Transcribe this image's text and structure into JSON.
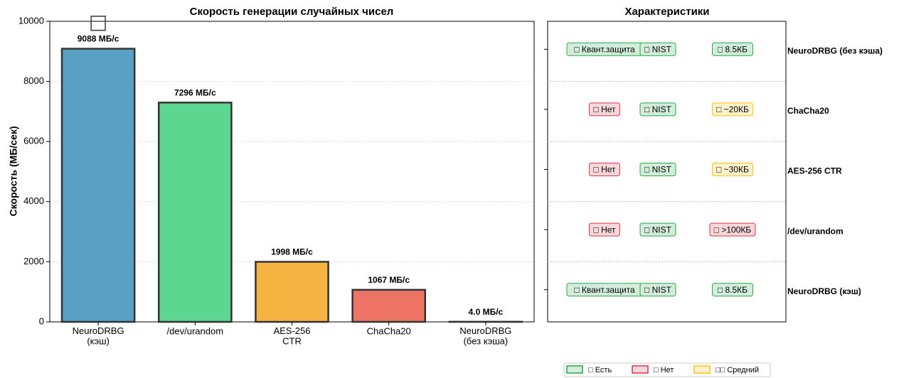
{
  "chart_data": [
    {
      "type": "bar",
      "title": "Скорость генерации случайных чисел",
      "ylabel": "Скорость (МБ/сек)",
      "categories": [
        "NeuroDRBG\n(кэш)",
        "/dev/urandom",
        "AES-256\nCTR",
        "ChaCha20",
        "NeuroDRBG\n(без кэша)"
      ],
      "values": [
        9088,
        7296,
        1998,
        1067,
        4.0
      ],
      "value_labels": [
        "9088 МБ/с",
        "7296 МБ/с",
        "1998 МБ/с",
        "1067 МБ/с",
        "4.0 МБ/с"
      ],
      "colors": [
        "#5aa0c4",
        "#5dd68f",
        "#f5b342",
        "#ee7565",
        "#8a8a8a"
      ],
      "annotation": "□",
      "ylim": [
        0,
        10000
      ],
      "yticks": [
        0,
        2000,
        4000,
        6000,
        8000,
        10000
      ],
      "grid": true
    },
    {
      "type": "table",
      "title": "Характеристики",
      "rows": [
        {
          "label": "NeuroDRBG (без кэша)",
          "cells": [
            {
              "text": "□ Квант.защита",
              "fill": "#d4edda",
              "edge": "#28a745"
            },
            {
              "text": "□ NIST",
              "fill": "#d4edda",
              "edge": "#28a745"
            },
            {
              "text": "□ 8.5КБ",
              "fill": "#d4edda",
              "edge": "#28a745"
            }
          ]
        },
        {
          "label": "ChaCha20",
          "cells": [
            {
              "text": "□ Нет",
              "fill": "#f8d7da",
              "edge": "#dc3545"
            },
            {
              "text": "□ NIST",
              "fill": "#d4edda",
              "edge": "#28a745"
            },
            {
              "text": "□ ~20КБ",
              "fill": "#fff3cd",
              "edge": "#ffc107"
            }
          ]
        },
        {
          "label": "AES-256 CTR",
          "cells": [
            {
              "text": "□ Нет",
              "fill": "#f8d7da",
              "edge": "#dc3545"
            },
            {
              "text": "□ NIST",
              "fill": "#d4edda",
              "edge": "#28a745"
            },
            {
              "text": "□ ~30КБ",
              "fill": "#fff3cd",
              "edge": "#ffc107"
            }
          ]
        },
        {
          "label": "/dev/urandom",
          "cells": [
            {
              "text": "□ Нет",
              "fill": "#f8d7da",
              "edge": "#dc3545"
            },
            {
              "text": "□ NIST",
              "fill": "#d4edda",
              "edge": "#28a745"
            },
            {
              "text": "□ >100КБ",
              "fill": "#f8d7da",
              "edge": "#dc3545"
            }
          ]
        },
        {
          "label": "NeuroDRBG (кэш)",
          "cells": [
            {
              "text": "□ Квант.защита",
              "fill": "#d4edda",
              "edge": "#28a745"
            },
            {
              "text": "□ NIST",
              "fill": "#d4edda",
              "edge": "#28a745"
            },
            {
              "text": "□ 8.5КБ",
              "fill": "#d4edda",
              "edge": "#28a745"
            }
          ]
        }
      ],
      "legend": [
        {
          "label": "□ Есть",
          "fill": "#d4edda",
          "edge": "#28a745"
        },
        {
          "label": "□ Нет",
          "fill": "#f8d7da",
          "edge": "#dc3545"
        },
        {
          "label": "□□ Средний",
          "fill": "#fff3cd",
          "edge": "#ffc107"
        }
      ]
    }
  ]
}
